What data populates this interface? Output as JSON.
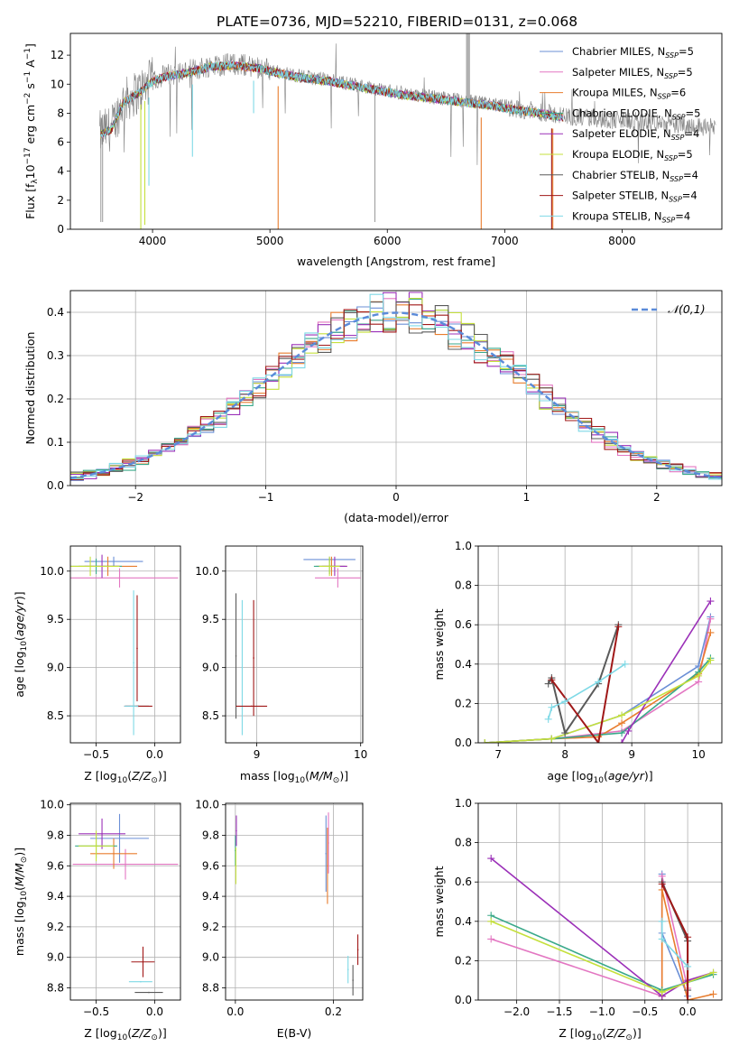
{
  "title": "PLATE=0736, MJD=52210, FIBERID=0131, z=0.068",
  "colors": {
    "Chabrier MILES": "#6b8fd6",
    "Salpeter MILES": "#e377c2",
    "Kroupa MILES": "#e87d2e",
    "Chabrier ELODIE": "#3aa98a",
    "Salpeter ELODIE": "#9b30b8",
    "Kroupa ELODIE": "#c5e03c",
    "Chabrier STELIB": "#5a5a5a",
    "Salpeter STELIB": "#a01818",
    "Kroupa STELIB": "#7fd9e6",
    "data": "#808080",
    "gaussian": "#5b8bd9"
  },
  "chart_data": [
    {
      "id": "spectrum",
      "type": "line",
      "xlabel": "wavelength [Angstrom, rest frame]",
      "ylabel": "Flux [f_λ10^-17 erg cm^-2 s^-1 A^-1]",
      "xlim": [
        3300,
        8850
      ],
      "ylim": [
        0,
        13.5
      ],
      "xticks": [
        4000,
        5000,
        6000,
        7000,
        8000
      ],
      "yticks": [
        0,
        2,
        4,
        6,
        8,
        10,
        12
      ],
      "grid": false,
      "legend_position": "upper-right",
      "legend": [
        "Chabrier MILES, N_SSP=5",
        "Salpeter MILES, N_SSP=5",
        "Kroupa MILES, N_SSP=6",
        "Chabrier ELODIE, N_SSP=5",
        "Salpeter ELODIE, N_SSP=4",
        "Kroupa ELODIE, N_SSP=5",
        "Chabrier STELIB, N_SSP=4",
        "Salpeter STELIB, N_SSP=4",
        "Kroupa STELIB, N_SSP=4"
      ],
      "continuum": [
        [
          3550,
          6.6
        ],
        [
          3650,
          7.0
        ],
        [
          3750,
          8.8
        ],
        [
          3900,
          9.6
        ],
        [
          4000,
          10.3
        ],
        [
          4100,
          10.6
        ],
        [
          4300,
          10.9
        ],
        [
          4500,
          11.3
        ],
        [
          4700,
          11.4
        ],
        [
          4900,
          11.2
        ],
        [
          5100,
          10.8
        ],
        [
          5300,
          10.5
        ],
        [
          5500,
          10.3
        ],
        [
          5700,
          10.0
        ],
        [
          5900,
          9.7
        ],
        [
          6100,
          9.4
        ],
        [
          6300,
          9.2
        ],
        [
          6500,
          9.0
        ],
        [
          6700,
          8.8
        ],
        [
          6900,
          8.6
        ],
        [
          7100,
          8.3
        ],
        [
          7300,
          8.1
        ],
        [
          7500,
          7.8
        ]
      ],
      "data_range": [
        3550,
        8800
      ]
    },
    {
      "id": "residuals",
      "type": "line",
      "xlabel": "(data-model)/error",
      "ylabel": "Normed distribution",
      "xlim": [
        -2.5,
        2.5
      ],
      "ylim": [
        0,
        0.45
      ],
      "xticks": [
        -2,
        -1,
        0,
        1,
        2
      ],
      "yticks": [
        0.0,
        0.1,
        0.2,
        0.3,
        0.4
      ],
      "grid": true,
      "legend_position": "upper-right",
      "legend": [
        "𝒩(0,1)"
      ],
      "bin_width": 0.1
    },
    {
      "id": "age-vs-Z",
      "type": "scatter",
      "xlabel": "Z [log10(Z/Z⊙)]",
      "ylabel": "age [log10(age/yr)]",
      "xlim": [
        -0.72,
        0.22
      ],
      "ylim": [
        8.22,
        10.26
      ],
      "xticks": [
        -0.5,
        0.0
      ],
      "yticks": [
        8.5,
        9.0,
        9.5,
        10.0
      ],
      "grid": true,
      "points": [
        {
          "model": "Chabrier MILES",
          "x": -0.35,
          "y": 10.1,
          "xerr": 0.25,
          "yerr": 0.05
        },
        {
          "model": "Salpeter MILES",
          "x": -0.3,
          "y": 9.93,
          "xerr": 0.5,
          "yerr": 0.1
        },
        {
          "model": "Kroupa MILES",
          "x": -0.4,
          "y": 10.05,
          "xerr": 0.25,
          "yerr": 0.1
        },
        {
          "model": "Chabrier ELODIE",
          "x": -0.5,
          "y": 10.05,
          "xerr": 0.22,
          "yerr": 0.08
        },
        {
          "model": "Salpeter ELODIE",
          "x": -0.45,
          "y": 10.05,
          "xerr": 0.15,
          "yerr": 0.12
        },
        {
          "model": "Kroupa ELODIE",
          "x": -0.55,
          "y": 10.05,
          "xerr": 0.25,
          "yerr": 0.1
        },
        {
          "model": "Chabrier STELIB",
          "x": -0.15,
          "y": 8.6,
          "xerr": 0.1,
          "yerr": 0.0
        },
        {
          "model": "Salpeter STELIB",
          "x": -0.14,
          "y": 8.6,
          "xerr": 0.12,
          "yerr": 0.0
        },
        {
          "model": "Kroupa STELIB",
          "x": -0.2,
          "y": 8.6,
          "xerr": 0.06,
          "yerr": 0.0
        },
        {
          "model": "Salpeter STELIB",
          "x": -0.15,
          "y": 9.2,
          "xerr": 0.0,
          "yerr": 0.55
        },
        {
          "model": "Kroupa STELIB",
          "x": -0.18,
          "y": 9.05,
          "xerr": 0.0,
          "yerr": 0.75
        }
      ]
    },
    {
      "id": "age-vs-mass",
      "type": "scatter",
      "xlabel": "mass [log10(M/M⊙)]",
      "ylabel": "",
      "xlim": [
        8.7,
        10.02
      ],
      "ylim": [
        8.22,
        10.26
      ],
      "xticks": [
        9,
        10
      ],
      "yticks": [
        8.5,
        9.0,
        9.5,
        10.0
      ],
      "grid": true,
      "points": [
        {
          "model": "Chabrier MILES",
          "x": 9.7,
          "y": 10.12,
          "xerr": 0.25,
          "yerr": 0.03
        },
        {
          "model": "Salpeter MILES",
          "x": 9.78,
          "y": 9.93,
          "xerr": 0.22,
          "yerr": 0.1
        },
        {
          "model": "Kroupa MILES",
          "x": 9.72,
          "y": 10.05,
          "xerr": 0.15,
          "yerr": 0.1
        },
        {
          "model": "Chabrier ELODIE",
          "x": 9.7,
          "y": 10.05,
          "xerr": 0.15,
          "yerr": 0.08
        },
        {
          "model": "Salpeter ELODIE",
          "x": 9.75,
          "y": 10.05,
          "xerr": 0.12,
          "yerr": 0.1
        },
        {
          "model": "Kroupa ELODIE",
          "x": 9.7,
          "y": 10.05,
          "xerr": 0.1,
          "yerr": 0.1
        },
        {
          "model": "Chabrier STELIB",
          "x": 8.8,
          "y": 9.12,
          "xerr": 0.0,
          "yerr": 0.65
        },
        {
          "model": "Salpeter STELIB",
          "x": 8.97,
          "y": 9.1,
          "xerr": 0.0,
          "yerr": 0.6
        },
        {
          "model": "Kroupa STELIB",
          "x": 8.86,
          "y": 9.0,
          "xerr": 0.0,
          "yerr": 0.7
        },
        {
          "model": "Salpeter STELIB",
          "x": 8.95,
          "y": 8.6,
          "xerr": 0.15,
          "yerr": 0.0
        }
      ]
    },
    {
      "id": "mass-weight-vs-age",
      "type": "line",
      "xlabel": "age [log10(age/yr)]",
      "ylabel": "mass weight",
      "xlim": [
        6.7,
        10.35
      ],
      "ylim": [
        0,
        1.0
      ],
      "xticks": [
        7,
        8,
        9,
        10
      ],
      "yticks": [
        0.0,
        0.2,
        0.4,
        0.6,
        0.8,
        1.0
      ],
      "grid": true,
      "series": [
        {
          "model": "Chabrier MILES",
          "x": [
            6.8,
            7.8,
            8.85,
            10.0,
            10.18
          ],
          "y": [
            0.0,
            0.02,
            0.14,
            0.39,
            0.64
          ]
        },
        {
          "model": "Salpeter MILES",
          "x": [
            6.8,
            7.8,
            8.85,
            10.0,
            10.18
          ],
          "y": [
            0.0,
            0.02,
            0.06,
            0.31,
            0.63
          ]
        },
        {
          "model": "Kroupa MILES",
          "x": [
            6.8,
            7.8,
            8.5,
            8.85,
            10.0,
            10.18
          ],
          "y": [
            0.0,
            0.02,
            0.03,
            0.1,
            0.35,
            0.56
          ]
        },
        {
          "model": "Chabrier ELODIE",
          "x": [
            6.8,
            7.8,
            8.85,
            10.0,
            10.18
          ],
          "y": [
            0.0,
            0.02,
            0.05,
            0.36,
            0.43
          ]
        },
        {
          "model": "Salpeter ELODIE",
          "x": [
            8.85,
            8.95,
            10.18
          ],
          "y": [
            0.0,
            0.06,
            0.72
          ]
        },
        {
          "model": "Kroupa ELODIE",
          "x": [
            6.8,
            7.8,
            8.85,
            10.0,
            10.18
          ],
          "y": [
            0.0,
            0.02,
            0.14,
            0.34,
            0.42
          ]
        },
        {
          "model": "Chabrier STELIB",
          "x": [
            7.75,
            7.8,
            8.0,
            8.5,
            8.8
          ],
          "y": [
            0.3,
            0.33,
            0.05,
            0.3,
            0.6
          ]
        },
        {
          "model": "Salpeter STELIB",
          "x": [
            7.8,
            8.5,
            8.8
          ],
          "y": [
            0.32,
            0.0,
            0.59
          ]
        },
        {
          "model": "Kroupa STELIB",
          "x": [
            7.75,
            7.8,
            8.0,
            8.5,
            8.9
          ],
          "y": [
            0.12,
            0.18,
            0.21,
            0.31,
            0.4
          ]
        }
      ]
    },
    {
      "id": "mass-vs-Z",
      "type": "scatter",
      "xlabel": "Z [log10(Z/Z⊙)]",
      "ylabel": "mass [log10(M/M⊙)]",
      "xlim": [
        -0.72,
        0.22
      ],
      "ylim": [
        8.72,
        10.01
      ],
      "xticks": [
        -0.5,
        0.0
      ],
      "yticks": [
        8.8,
        9.0,
        9.2,
        9.4,
        9.6,
        9.8,
        10.0
      ],
      "grid": true,
      "points": [
        {
          "model": "Chabrier MILES",
          "x": -0.3,
          "y": 9.78,
          "xerr": 0.25,
          "yerr": 0.16
        },
        {
          "model": "Salpeter MILES",
          "x": -0.25,
          "y": 9.61,
          "xerr": 0.45,
          "yerr": 0.1
        },
        {
          "model": "Kroupa MILES",
          "x": -0.35,
          "y": 9.68,
          "xerr": 0.2,
          "yerr": 0.1
        },
        {
          "model": "Chabrier ELODIE",
          "x": -0.5,
          "y": 9.73,
          "xerr": 0.18,
          "yerr": 0.08
        },
        {
          "model": "Salpeter ELODIE",
          "x": -0.45,
          "y": 9.81,
          "xerr": 0.2,
          "yerr": 0.1
        },
        {
          "model": "Kroupa ELODIE",
          "x": -0.5,
          "y": 9.73,
          "xerr": 0.15,
          "yerr": 0.1
        },
        {
          "model": "Chabrier STELIB",
          "x": -0.05,
          "y": 8.77,
          "xerr": 0.12,
          "yerr": 0.0
        },
        {
          "model": "Salpeter STELIB",
          "x": -0.1,
          "y": 8.97,
          "xerr": 0.1,
          "yerr": 0.1
        },
        {
          "model": "Kroupa STELIB",
          "x": -0.12,
          "y": 8.84,
          "xerr": 0.1,
          "yerr": 0.0
        }
      ]
    },
    {
      "id": "mass-vs-EBV",
      "type": "scatter",
      "xlabel": "E(B-V)",
      "ylabel": "",
      "xlim": [
        -0.02,
        0.26
      ],
      "ylim": [
        8.72,
        10.01
      ],
      "xticks": [
        0.0,
        0.2
      ],
      "yticks": [
        8.8,
        9.0,
        9.2,
        9.4,
        9.6,
        9.8,
        10.0
      ],
      "grid": true,
      "points": [
        {
          "model": "Chabrier MILES",
          "x": 0.185,
          "y": 9.68,
          "xerr": 0.0,
          "yerr": 0.25
        },
        {
          "model": "Salpeter MILES",
          "x": 0.19,
          "y": 9.75,
          "xerr": 0.0,
          "yerr": 0.2
        },
        {
          "model": "Kroupa MILES",
          "x": 0.188,
          "y": 9.6,
          "xerr": 0.0,
          "yerr": 0.25
        },
        {
          "model": "Chabrier ELODIE",
          "x": 0.0,
          "y": 9.7,
          "xerr": 0.0,
          "yerr": 0.1
        },
        {
          "model": "Salpeter ELODIE",
          "x": 0.002,
          "y": 9.83,
          "xerr": 0.0,
          "yerr": 0.1
        },
        {
          "model": "Kroupa ELODIE",
          "x": 0.001,
          "y": 9.6,
          "xerr": 0.0,
          "yerr": 0.12
        },
        {
          "model": "Chabrier STELIB",
          "x": 0.24,
          "y": 8.85,
          "xerr": 0.0,
          "yerr": 0.1
        },
        {
          "model": "Salpeter STELIB",
          "x": 0.25,
          "y": 9.05,
          "xerr": 0.0,
          "yerr": 0.1
        },
        {
          "model": "Kroupa STELIB",
          "x": 0.23,
          "y": 8.92,
          "xerr": 0.0,
          "yerr": 0.09
        }
      ]
    },
    {
      "id": "mass-weight-vs-Z",
      "type": "line",
      "xlabel": "Z [log10(Z/Z⊙)]",
      "ylabel": "mass weight",
      "xlim": [
        -2.45,
        0.4
      ],
      "ylim": [
        0,
        1.0
      ],
      "xticks": [
        -2.0,
        -1.5,
        -1.0,
        -0.5,
        0.0
      ],
      "yticks": [
        0.0,
        0.2,
        0.4,
        0.6,
        0.8,
        1.0
      ],
      "grid": true,
      "series": [
        {
          "model": "Chabrier MILES",
          "x": [
            -0.3,
            -0.3,
            0.0
          ],
          "y": [
            0.64,
            0.34,
            0.02
          ]
        },
        {
          "model": "Salpeter MILES",
          "x": [
            -2.3,
            -0.3,
            -0.3,
            0.0
          ],
          "y": [
            0.31,
            0.02,
            0.63,
            0.06
          ]
        },
        {
          "model": "Kroupa MILES",
          "x": [
            -0.3,
            -0.3,
            0.0,
            0.3
          ],
          "y": [
            0.02,
            0.56,
            0.0,
            0.03
          ]
        },
        {
          "model": "Chabrier ELODIE",
          "x": [
            -2.3,
            -0.3,
            0.3
          ],
          "y": [
            0.43,
            0.05,
            0.13
          ]
        },
        {
          "model": "Salpeter ELODIE",
          "x": [
            -2.3,
            -0.3,
            0.0,
            0.3
          ],
          "y": [
            0.72,
            0.02,
            0.1,
            0.14
          ]
        },
        {
          "model": "Kroupa ELODIE",
          "x": [
            -2.3,
            -0.3,
            0.3
          ],
          "y": [
            0.4,
            0.04,
            0.14
          ]
        },
        {
          "model": "Chabrier STELIB",
          "x": [
            -0.3,
            0.0,
            0.0
          ],
          "y": [
            0.6,
            0.3,
            0.05
          ]
        },
        {
          "model": "Salpeter STELIB",
          "x": [
            -0.3,
            0.0,
            0.0
          ],
          "y": [
            0.59,
            0.32,
            0.0
          ]
        },
        {
          "model": "Kroupa STELIB",
          "x": [
            -0.3,
            -0.3,
            0.0
          ],
          "y": [
            0.4,
            0.31,
            0.17
          ]
        }
      ]
    }
  ]
}
